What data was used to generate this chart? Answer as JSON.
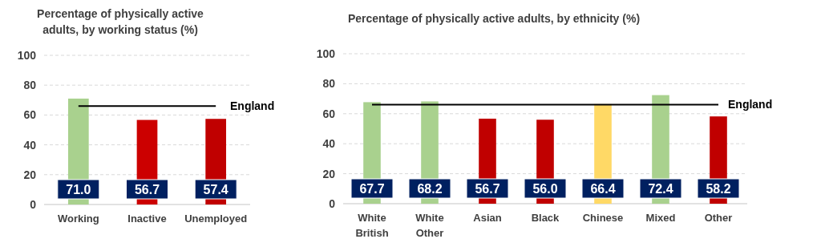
{
  "chart_data": [
    {
      "type": "bar",
      "title": "Percentage of physically active adults, by working status (%)",
      "categories": [
        "Working",
        "Inactive",
        "Unemployed"
      ],
      "values": [
        71.0,
        56.7,
        57.4
      ],
      "colors": [
        "#a9d18e",
        "#cc0000",
        "#c00000"
      ],
      "ylim": [
        0,
        100
      ],
      "yticks": [
        0,
        20,
        40,
        60,
        80,
        100
      ],
      "grid": "y",
      "value_labels": [
        "71.0",
        "56.7",
        "57.4"
      ],
      "ref_lines": [
        {
          "axis": "y",
          "value": 66,
          "label": "England",
          "color": "#000000"
        }
      ]
    },
    {
      "type": "bar",
      "title": "Percentage of physically active adults, by ethnicity (%)",
      "categories": [
        "White British",
        "White Other",
        "Asian",
        "Black",
        "Chinese",
        "Mixed",
        "Other"
      ],
      "values": [
        67.7,
        68.2,
        56.7,
        56.0,
        66.4,
        72.4,
        58.2
      ],
      "colors": [
        "#a9d18e",
        "#a9d18e",
        "#c00000",
        "#c00000",
        "#ffd966",
        "#a9d18e",
        "#c00000"
      ],
      "ylim": [
        0,
        100
      ],
      "yticks": [
        0,
        20,
        40,
        60,
        80,
        100
      ],
      "grid": "y",
      "value_labels": [
        "67.7",
        "68.2",
        "56.7",
        "56.0",
        "66.4",
        "72.4",
        "58.2"
      ],
      "ref_lines": [
        {
          "axis": "y",
          "value": 66,
          "label": "England",
          "color": "#000000"
        }
      ]
    }
  ]
}
